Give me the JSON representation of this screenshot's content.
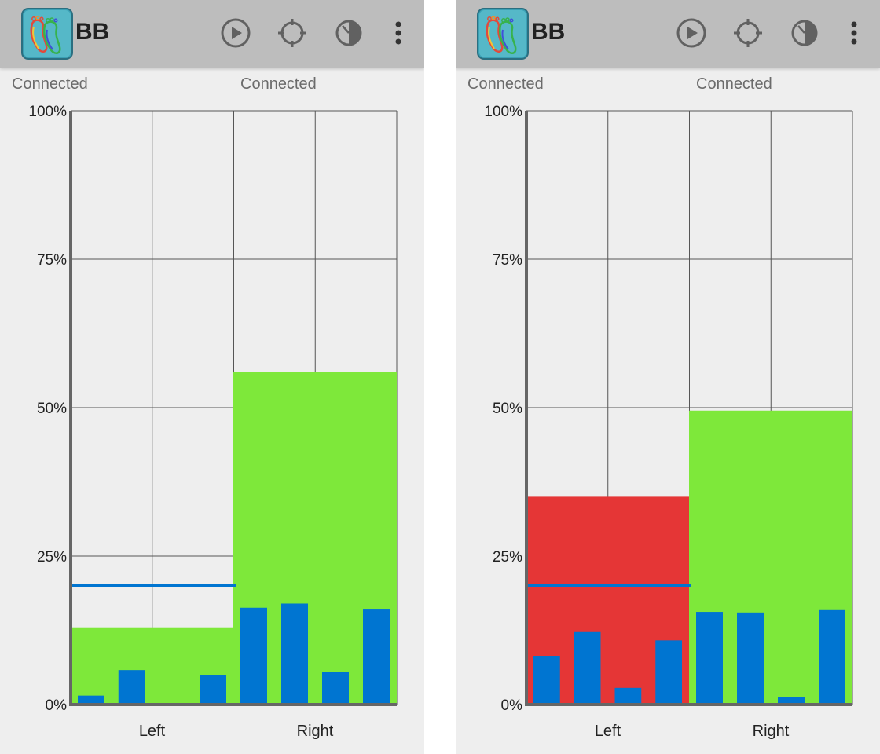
{
  "colors": {
    "appbar": "#bdbdbd",
    "background": "#eeeeee",
    "ok_fill": "#7ee83a",
    "alert_fill": "#e53636",
    "sensor_bar": "#0075d1",
    "threshold_line": "#0075d1"
  },
  "screens": [
    {
      "app_title": "BB",
      "actions": [
        "play-circle-icon",
        "crosshair-icon",
        "timer-icon",
        "overflow-menu-icon"
      ],
      "status_left": "Connected",
      "status_right": "Connected"
    },
    {
      "app_title": "BB",
      "actions": [
        "play-circle-icon",
        "crosshair-icon",
        "timer-icon",
        "overflow-menu-icon"
      ],
      "status_left": "Connected",
      "status_right": "Connected"
    }
  ],
  "chart_data": [
    {
      "type": "bar",
      "categories": [
        "Left",
        "Right"
      ],
      "y_ticks": [
        "0%",
        "25%",
        "50%",
        "75%",
        "100%"
      ],
      "ylim": [
        0,
        100
      ],
      "grid": true,
      "foot_load_percent": {
        "Left": 13,
        "Right": 56
      },
      "foot_fill": {
        "Left": "ok",
        "Right": "ok"
      },
      "threshold_percent": 20,
      "sensor_values_percent": {
        "Left": [
          1.5,
          5.8,
          0,
          5
        ],
        "Right": [
          16.3,
          17,
          5.5,
          16
        ]
      }
    },
    {
      "type": "bar",
      "categories": [
        "Left",
        "Right"
      ],
      "y_ticks": [
        "0%",
        "25%",
        "50%",
        "75%",
        "100%"
      ],
      "ylim": [
        0,
        100
      ],
      "grid": true,
      "foot_load_percent": {
        "Left": 35,
        "Right": 49.5
      },
      "foot_fill": {
        "Left": "alert",
        "Right": "ok"
      },
      "threshold_percent": 20,
      "sensor_values_percent": {
        "Left": [
          8.2,
          12.2,
          2.8,
          10.8
        ],
        "Right": [
          15.6,
          15.5,
          1.3,
          15.9
        ]
      }
    }
  ]
}
